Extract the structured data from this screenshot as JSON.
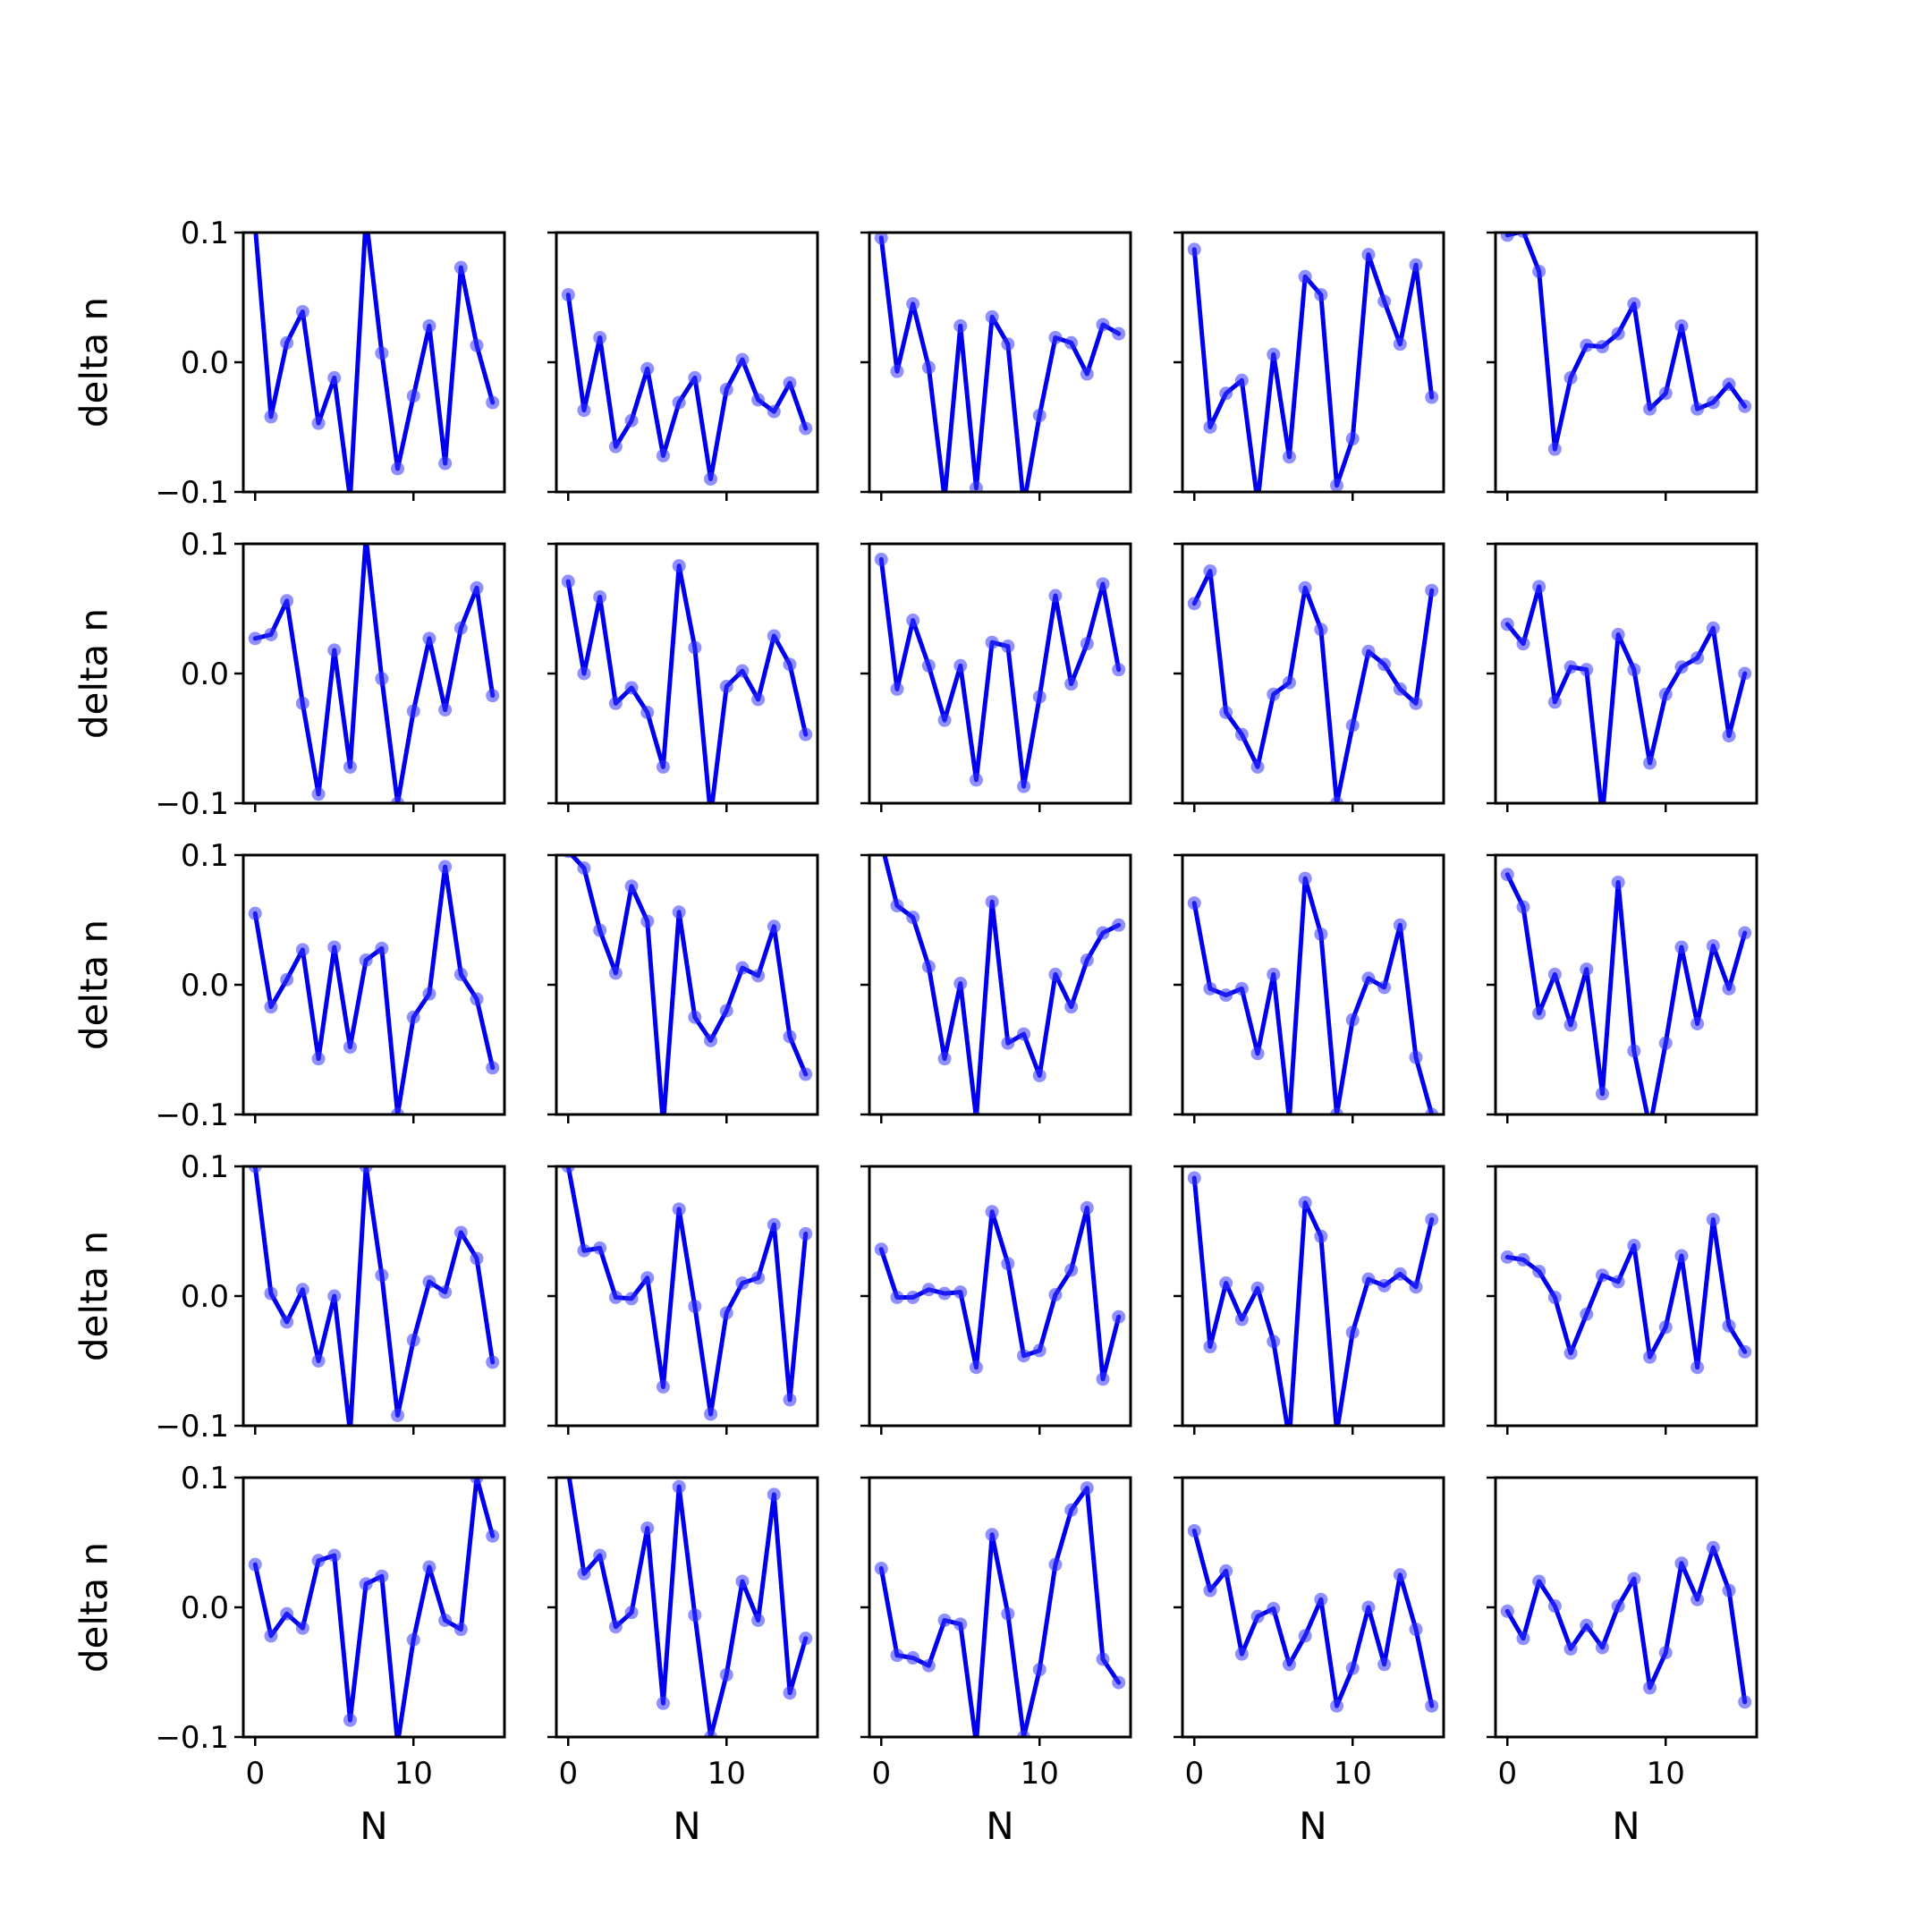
{
  "figure": {
    "rows": 5,
    "cols": 5,
    "xlabel": "N",
    "ylabel": "delta n",
    "series_color": "#0000ee",
    "marker_color": "#3333ff"
  },
  "chart_data": [
    {
      "type": "line",
      "row": 0,
      "col": 0,
      "xlim": [
        -0.75,
        15.75
      ],
      "ylim": [
        -0.1,
        0.1
      ],
      "xticks": [
        0,
        10
      ],
      "yticks": [
        -0.1,
        0.0,
        0.1
      ],
      "x": [
        0,
        1,
        2,
        3,
        4,
        5,
        6,
        7,
        8,
        9,
        10,
        11,
        12,
        13,
        14,
        15
      ],
      "y": [
        0.105,
        -0.042,
        0.015,
        0.039,
        -0.047,
        -0.012,
        -0.105,
        0.112,
        0.007,
        -0.082,
        -0.026,
        0.028,
        -0.078,
        0.073,
        0.013,
        -0.031
      ]
    },
    {
      "type": "line",
      "row": 0,
      "col": 1,
      "xlim": [
        -0.75,
        15.75
      ],
      "ylim": [
        -0.1,
        0.1
      ],
      "xticks": [
        0,
        10
      ],
      "yticks": [
        -0.1,
        0.0,
        0.1
      ],
      "x": [
        0,
        1,
        2,
        3,
        4,
        5,
        6,
        7,
        8,
        9,
        10,
        11,
        12,
        13,
        14,
        15
      ],
      "y": [
        0.052,
        -0.037,
        0.019,
        -0.065,
        -0.045,
        -0.005,
        -0.072,
        -0.031,
        -0.012,
        -0.09,
        -0.021,
        0.002,
        -0.029,
        -0.038,
        -0.016,
        -0.051
      ]
    },
    {
      "type": "line",
      "row": 0,
      "col": 2,
      "xlim": [
        -0.75,
        15.75
      ],
      "ylim": [
        -0.1,
        0.1
      ],
      "xticks": [
        0,
        10
      ],
      "yticks": [
        -0.1,
        0.0,
        0.1
      ],
      "x": [
        0,
        1,
        2,
        3,
        4,
        5,
        6,
        7,
        8,
        9,
        10,
        11,
        12,
        13,
        14,
        15
      ],
      "y": [
        0.096,
        -0.007,
        0.045,
        -0.004,
        -0.105,
        0.028,
        -0.097,
        0.035,
        0.014,
        -0.11,
        -0.041,
        0.019,
        0.015,
        -0.009,
        0.029,
        0.022
      ]
    },
    {
      "type": "line",
      "row": 0,
      "col": 3,
      "xlim": [
        -0.75,
        15.75
      ],
      "ylim": [
        -0.1,
        0.1
      ],
      "xticks": [
        0,
        10
      ],
      "yticks": [
        -0.1,
        0.0,
        0.1
      ],
      "x": [
        0,
        1,
        2,
        3,
        4,
        5,
        6,
        7,
        8,
        9,
        10,
        11,
        12,
        13,
        14,
        15
      ],
      "y": [
        0.087,
        -0.05,
        -0.024,
        -0.014,
        -0.108,
        0.006,
        -0.073,
        0.066,
        0.052,
        -0.095,
        -0.059,
        0.083,
        0.047,
        0.014,
        0.075,
        -0.027
      ]
    },
    {
      "type": "line",
      "row": 0,
      "col": 4,
      "xlim": [
        -0.75,
        15.75
      ],
      "ylim": [
        -0.1,
        0.1
      ],
      "xticks": [
        0,
        10
      ],
      "yticks": [
        -0.1,
        0.0,
        0.1
      ],
      "x": [
        0,
        1,
        2,
        3,
        4,
        5,
        6,
        7,
        8,
        9,
        10,
        11,
        12,
        13,
        14,
        15
      ],
      "y": [
        0.098,
        0.101,
        0.07,
        -0.067,
        -0.012,
        0.013,
        0.012,
        0.022,
        0.045,
        -0.036,
        -0.024,
        0.028,
        -0.036,
        -0.031,
        -0.017,
        -0.034
      ]
    },
    {
      "type": "line",
      "row": 1,
      "col": 0,
      "xlim": [
        -0.75,
        15.75
      ],
      "ylim": [
        -0.1,
        0.1
      ],
      "xticks": [
        0,
        10
      ],
      "yticks": [
        -0.1,
        0.0,
        0.1
      ],
      "x": [
        0,
        1,
        2,
        3,
        4,
        5,
        6,
        7,
        8,
        9,
        10,
        11,
        12,
        13,
        14,
        15
      ],
      "y": [
        0.027,
        0.03,
        0.056,
        -0.023,
        -0.093,
        0.018,
        -0.072,
        0.105,
        -0.004,
        -0.1,
        -0.029,
        0.027,
        -0.028,
        0.035,
        0.066,
        -0.017
      ]
    },
    {
      "type": "line",
      "row": 1,
      "col": 1,
      "xlim": [
        -0.75,
        15.75
      ],
      "ylim": [
        -0.1,
        0.1
      ],
      "xticks": [
        0,
        10
      ],
      "yticks": [
        -0.1,
        0.0,
        0.1
      ],
      "x": [
        0,
        1,
        2,
        3,
        4,
        5,
        6,
        7,
        8,
        9,
        10,
        11,
        12,
        13,
        14,
        15
      ],
      "y": [
        0.071,
        0.0,
        0.059,
        -0.023,
        -0.011,
        -0.03,
        -0.072,
        0.083,
        0.02,
        -0.11,
        -0.01,
        0.002,
        -0.02,
        0.029,
        0.007,
        -0.047
      ]
    },
    {
      "type": "line",
      "row": 1,
      "col": 2,
      "xlim": [
        -0.75,
        15.75
      ],
      "ylim": [
        -0.1,
        0.1
      ],
      "xticks": [
        0,
        10
      ],
      "yticks": [
        -0.1,
        0.0,
        0.1
      ],
      "x": [
        0,
        1,
        2,
        3,
        4,
        5,
        6,
        7,
        8,
        9,
        10,
        11,
        12,
        13,
        14,
        15
      ],
      "y": [
        0.088,
        -0.012,
        0.041,
        0.006,
        -0.036,
        0.006,
        -0.082,
        0.024,
        0.021,
        -0.087,
        -0.018,
        0.06,
        -0.008,
        0.023,
        0.069,
        0.003
      ]
    },
    {
      "type": "line",
      "row": 1,
      "col": 3,
      "xlim": [
        -0.75,
        15.75
      ],
      "ylim": [
        -0.1,
        0.1
      ],
      "xticks": [
        0,
        10
      ],
      "yticks": [
        -0.1,
        0.0,
        0.1
      ],
      "x": [
        0,
        1,
        2,
        3,
        4,
        5,
        6,
        7,
        8,
        9,
        10,
        11,
        12,
        13,
        14,
        15
      ],
      "y": [
        0.054,
        0.079,
        -0.03,
        -0.047,
        -0.072,
        -0.016,
        -0.007,
        0.066,
        0.034,
        -0.1,
        -0.04,
        0.017,
        0.007,
        -0.012,
        -0.023,
        0.064
      ]
    },
    {
      "type": "line",
      "row": 1,
      "col": 4,
      "xlim": [
        -0.75,
        15.75
      ],
      "ylim": [
        -0.1,
        0.1
      ],
      "xticks": [
        0,
        10
      ],
      "yticks": [
        -0.1,
        0.0,
        0.1
      ],
      "x": [
        0,
        1,
        2,
        3,
        4,
        5,
        6,
        7,
        8,
        9,
        10,
        11,
        12,
        13,
        14,
        15
      ],
      "y": [
        0.038,
        0.023,
        0.067,
        -0.022,
        0.005,
        0.003,
        -0.11,
        0.03,
        0.003,
        -0.069,
        -0.016,
        0.005,
        0.012,
        0.035,
        -0.048,
        0.0
      ]
    },
    {
      "type": "line",
      "row": 2,
      "col": 0,
      "xlim": [
        -0.75,
        15.75
      ],
      "ylim": [
        -0.1,
        0.1
      ],
      "xticks": [
        0,
        10
      ],
      "yticks": [
        -0.1,
        0.0,
        0.1
      ],
      "x": [
        0,
        1,
        2,
        3,
        4,
        5,
        6,
        7,
        8,
        9,
        10,
        11,
        12,
        13,
        14,
        15
      ],
      "y": [
        0.055,
        -0.017,
        0.004,
        0.027,
        -0.057,
        0.029,
        -0.048,
        0.019,
        0.028,
        -0.1,
        -0.025,
        -0.007,
        0.091,
        0.008,
        -0.011,
        -0.064
      ]
    },
    {
      "type": "line",
      "row": 2,
      "col": 1,
      "xlim": [
        -0.75,
        15.75
      ],
      "ylim": [
        -0.1,
        0.1
      ],
      "xticks": [
        0,
        10
      ],
      "yticks": [
        -0.1,
        0.0,
        0.1
      ],
      "x": [
        0,
        1,
        2,
        3,
        4,
        5,
        6,
        7,
        8,
        9,
        10,
        11,
        12,
        13,
        14,
        15
      ],
      "y": [
        0.103,
        0.09,
        0.042,
        0.009,
        0.076,
        0.049,
        -0.108,
        0.056,
        -0.025,
        -0.043,
        -0.02,
        0.013,
        0.007,
        0.045,
        -0.04,
        -0.069
      ]
    },
    {
      "type": "line",
      "row": 2,
      "col": 2,
      "xlim": [
        -0.75,
        15.75
      ],
      "ylim": [
        -0.1,
        0.1
      ],
      "xticks": [
        0,
        10
      ],
      "yticks": [
        -0.1,
        0.0,
        0.1
      ],
      "x": [
        0,
        1,
        2,
        3,
        4,
        5,
        6,
        7,
        8,
        9,
        10,
        11,
        12,
        13,
        14,
        15
      ],
      "y": [
        0.11,
        0.061,
        0.052,
        0.014,
        -0.057,
        0.001,
        -0.103,
        0.064,
        -0.045,
        -0.038,
        -0.07,
        0.008,
        -0.017,
        0.019,
        0.04,
        0.046
      ]
    },
    {
      "type": "line",
      "row": 2,
      "col": 3,
      "xlim": [
        -0.75,
        15.75
      ],
      "ylim": [
        -0.1,
        0.1
      ],
      "xticks": [
        0,
        10
      ],
      "yticks": [
        -0.1,
        0.0,
        0.1
      ],
      "x": [
        0,
        1,
        2,
        3,
        4,
        5,
        6,
        7,
        8,
        9,
        10,
        11,
        12,
        13,
        14,
        15
      ],
      "y": [
        0.063,
        -0.003,
        -0.008,
        -0.003,
        -0.053,
        0.008,
        -0.104,
        0.082,
        0.039,
        -0.1,
        -0.027,
        0.005,
        -0.002,
        0.046,
        -0.056,
        -0.1
      ]
    },
    {
      "type": "line",
      "row": 2,
      "col": 4,
      "xlim": [
        -0.75,
        15.75
      ],
      "ylim": [
        -0.1,
        0.1
      ],
      "xticks": [
        0,
        10
      ],
      "yticks": [
        -0.1,
        0.0,
        0.1
      ],
      "x": [
        0,
        1,
        2,
        3,
        4,
        5,
        6,
        7,
        8,
        9,
        10,
        11,
        12,
        13,
        14,
        15
      ],
      "y": [
        0.085,
        0.06,
        -0.022,
        0.008,
        -0.031,
        0.012,
        -0.084,
        0.079,
        -0.051,
        -0.11,
        -0.045,
        0.029,
        -0.03,
        0.03,
        -0.003,
        0.04
      ]
    },
    {
      "type": "line",
      "row": 3,
      "col": 0,
      "xlim": [
        -0.75,
        15.75
      ],
      "ylim": [
        -0.1,
        0.1
      ],
      "xticks": [
        0,
        10
      ],
      "yticks": [
        -0.1,
        0.0,
        0.1
      ],
      "x": [
        0,
        1,
        2,
        3,
        4,
        5,
        6,
        7,
        8,
        9,
        10,
        11,
        12,
        13,
        14,
        15
      ],
      "y": [
        0.1,
        0.002,
        -0.02,
        0.005,
        -0.05,
        0.0,
        -0.105,
        0.1,
        0.016,
        -0.092,
        -0.034,
        0.011,
        0.003,
        0.049,
        0.029,
        -0.051
      ]
    },
    {
      "type": "line",
      "row": 3,
      "col": 1,
      "xlim": [
        -0.75,
        15.75
      ],
      "ylim": [
        -0.1,
        0.1
      ],
      "xticks": [
        0,
        10
      ],
      "yticks": [
        -0.1,
        0.0,
        0.1
      ],
      "x": [
        0,
        1,
        2,
        3,
        4,
        5,
        6,
        7,
        8,
        9,
        10,
        11,
        12,
        13,
        14,
        15
      ],
      "y": [
        0.1,
        0.035,
        0.037,
        -0.001,
        -0.002,
        0.014,
        -0.07,
        0.067,
        -0.008,
        -0.091,
        -0.013,
        0.01,
        0.014,
        0.055,
        -0.08,
        0.048
      ]
    },
    {
      "type": "line",
      "row": 3,
      "col": 2,
      "xlim": [
        -0.75,
        15.75
      ],
      "ylim": [
        -0.1,
        0.1
      ],
      "xticks": [
        0,
        10
      ],
      "yticks": [
        -0.1,
        0.0,
        0.1
      ],
      "x": [
        0,
        1,
        2,
        3,
        4,
        5,
        6,
        7,
        8,
        9,
        10,
        11,
        12,
        13,
        14,
        15
      ],
      "y": [
        0.036,
        -0.001,
        -0.001,
        0.005,
        0.002,
        0.003,
        -0.055,
        0.065,
        0.025,
        -0.046,
        -0.042,
        0.001,
        0.02,
        0.068,
        -0.064,
        -0.016
      ]
    },
    {
      "type": "line",
      "row": 3,
      "col": 3,
      "xlim": [
        -0.75,
        15.75
      ],
      "ylim": [
        -0.1,
        0.1
      ],
      "xticks": [
        0,
        10
      ],
      "yticks": [
        -0.1,
        0.0,
        0.1
      ],
      "x": [
        0,
        1,
        2,
        3,
        4,
        5,
        6,
        7,
        8,
        9,
        10,
        11,
        12,
        13,
        14,
        15
      ],
      "y": [
        0.091,
        -0.039,
        0.01,
        -0.018,
        0.006,
        -0.035,
        -0.11,
        0.072,
        0.046,
        -0.105,
        -0.028,
        0.013,
        0.008,
        0.017,
        0.007,
        0.059
      ]
    },
    {
      "type": "line",
      "row": 3,
      "col": 4,
      "xlim": [
        -0.75,
        15.75
      ],
      "ylim": [
        -0.1,
        0.1
      ],
      "xticks": [
        0,
        10
      ],
      "yticks": [
        -0.1,
        0.0,
        0.1
      ],
      "x": [
        0,
        1,
        2,
        3,
        4,
        5,
        6,
        7,
        8,
        9,
        10,
        11,
        12,
        13,
        14,
        15
      ],
      "y": [
        0.03,
        0.028,
        0.019,
        -0.001,
        -0.044,
        -0.014,
        0.016,
        0.011,
        0.039,
        -0.047,
        -0.024,
        0.031,
        -0.055,
        0.059,
        -0.023,
        -0.043
      ]
    },
    {
      "type": "line",
      "row": 4,
      "col": 0,
      "xlim": [
        -0.75,
        15.75
      ],
      "ylim": [
        -0.1,
        0.1
      ],
      "xticks": [
        0,
        10
      ],
      "yticks": [
        -0.1,
        0.0,
        0.1
      ],
      "x": [
        0,
        1,
        2,
        3,
        4,
        5,
        6,
        7,
        8,
        9,
        10,
        11,
        12,
        13,
        14,
        15
      ],
      "y": [
        0.033,
        -0.022,
        -0.005,
        -0.016,
        0.036,
        0.04,
        -0.087,
        0.018,
        0.024,
        -0.105,
        -0.025,
        0.031,
        -0.01,
        -0.017,
        0.1,
        0.055
      ]
    },
    {
      "type": "line",
      "row": 4,
      "col": 1,
      "xlim": [
        -0.75,
        15.75
      ],
      "ylim": [
        -0.1,
        0.1
      ],
      "xticks": [
        0,
        10
      ],
      "yticks": [
        -0.1,
        0.0,
        0.1
      ],
      "x": [
        0,
        1,
        2,
        3,
        4,
        5,
        6,
        7,
        8,
        9,
        10,
        11,
        12,
        13,
        14,
        15
      ],
      "y": [
        0.105,
        0.026,
        0.04,
        -0.015,
        -0.004,
        0.061,
        -0.074,
        0.093,
        -0.006,
        -0.1,
        -0.052,
        0.02,
        -0.01,
        0.087,
        -0.066,
        -0.024
      ]
    },
    {
      "type": "line",
      "row": 4,
      "col": 2,
      "xlim": [
        -0.75,
        15.75
      ],
      "ylim": [
        -0.1,
        0.1
      ],
      "xticks": [
        0,
        10
      ],
      "yticks": [
        -0.1,
        0.0,
        0.1
      ],
      "x": [
        0,
        1,
        2,
        3,
        4,
        5,
        6,
        7,
        8,
        9,
        10,
        11,
        12,
        13,
        14,
        15
      ],
      "y": [
        0.03,
        -0.037,
        -0.039,
        -0.045,
        -0.01,
        -0.013,
        -0.105,
        0.056,
        -0.005,
        -0.1,
        -0.048,
        0.033,
        0.075,
        0.092,
        -0.04,
        -0.058
      ]
    },
    {
      "type": "line",
      "row": 4,
      "col": 3,
      "xlim": [
        -0.75,
        15.75
      ],
      "ylim": [
        -0.1,
        0.1
      ],
      "xticks": [
        0,
        10
      ],
      "yticks": [
        -0.1,
        0.0,
        0.1
      ],
      "x": [
        0,
        1,
        2,
        3,
        4,
        5,
        6,
        7,
        8,
        9,
        10,
        11,
        12,
        13,
        14,
        15
      ],
      "y": [
        0.059,
        0.013,
        0.028,
        -0.036,
        -0.007,
        -0.001,
        -0.044,
        -0.022,
        0.006,
        -0.076,
        -0.047,
        0.0,
        -0.044,
        0.025,
        -0.017,
        -0.076
      ]
    },
    {
      "type": "line",
      "row": 4,
      "col": 4,
      "xlim": [
        -0.75,
        15.75
      ],
      "ylim": [
        -0.1,
        0.1
      ],
      "xticks": [
        0,
        10
      ],
      "yticks": [
        -0.1,
        0.0,
        0.1
      ],
      "x": [
        0,
        1,
        2,
        3,
        4,
        5,
        6,
        7,
        8,
        9,
        10,
        11,
        12,
        13,
        14,
        15
      ],
      "y": [
        -0.003,
        -0.024,
        0.02,
        0.001,
        -0.032,
        -0.014,
        -0.031,
        0.001,
        0.022,
        -0.062,
        -0.035,
        0.034,
        0.006,
        0.046,
        0.013,
        -0.073
      ]
    }
  ]
}
